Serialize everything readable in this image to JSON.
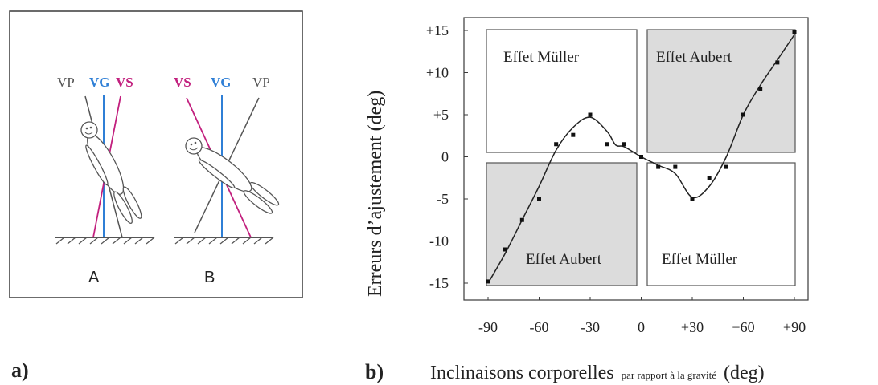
{
  "panel_a": {
    "label": "a)",
    "figure_A": {
      "caption": "A",
      "vp": "VP",
      "vg": "VG",
      "vs": "VS"
    },
    "figure_B": {
      "caption": "B",
      "vs": "VS",
      "vg": "VG",
      "vp": "VP"
    },
    "colors": {
      "vg": "#2f7fd6",
      "vs": "#c2207e",
      "vp": "#555555"
    }
  },
  "panel_b": {
    "label": "b)",
    "xlabel_main": "Inclinaisons corporelles",
    "xlabel_small": "par rapport à la gravité",
    "xlabel_unit": "(deg)",
    "ylabel": "Erreurs d’ajustement (deg)",
    "x_ticks": [
      "-90",
      "-60",
      "-30",
      "0",
      "+30",
      "+60",
      "+90"
    ],
    "y_ticks": [
      "+15",
      "+10",
      "+5",
      "0",
      "-5",
      "-10",
      "-15"
    ],
    "quadrants": {
      "top_left": "Effet Müller",
      "top_right": "Effet Aubert",
      "bottom_left": "Effet Aubert",
      "bottom_right": "Effet Müller"
    },
    "shade_color": "#dcdcdc"
  },
  "chart_data": {
    "type": "scatter",
    "xlim": [
      -90,
      90
    ],
    "ylim": [
      -15,
      15
    ],
    "grid": false,
    "points": [
      {
        "x": -90,
        "y": -14.8
      },
      {
        "x": -80,
        "y": -11
      },
      {
        "x": -70,
        "y": -7.5
      },
      {
        "x": -60,
        "y": -5
      },
      {
        "x": -50,
        "y": 1.5
      },
      {
        "x": -40,
        "y": 2.6
      },
      {
        "x": -30,
        "y": 5
      },
      {
        "x": -20,
        "y": 1.5
      },
      {
        "x": -10,
        "y": 1.5
      },
      {
        "x": 0,
        "y": 0
      },
      {
        "x": 10,
        "y": -1.2
      },
      {
        "x": 20,
        "y": -1.2
      },
      {
        "x": 30,
        "y": -5
      },
      {
        "x": 40,
        "y": -2.5
      },
      {
        "x": 50,
        "y": -1.2
      },
      {
        "x": 60,
        "y": 5
      },
      {
        "x": 70,
        "y": 8
      },
      {
        "x": 80,
        "y": 11.2
      },
      {
        "x": 90,
        "y": 14.8
      }
    ],
    "curve": [
      {
        "x": -90,
        "y": -15
      },
      {
        "x": -80,
        "y": -11.5
      },
      {
        "x": -70,
        "y": -7.5
      },
      {
        "x": -60,
        "y": -3.5
      },
      {
        "x": -50,
        "y": 0.8
      },
      {
        "x": -40,
        "y": 3.5
      },
      {
        "x": -30,
        "y": 4.7
      },
      {
        "x": -20,
        "y": 3
      },
      {
        "x": -15,
        "y": 1.4
      },
      {
        "x": -10,
        "y": 1.2
      },
      {
        "x": 0,
        "y": 0
      },
      {
        "x": 10,
        "y": -1
      },
      {
        "x": 20,
        "y": -2
      },
      {
        "x": 30,
        "y": -4.8
      },
      {
        "x": 40,
        "y": -3.5
      },
      {
        "x": 50,
        "y": 0
      },
      {
        "x": 60,
        "y": 5
      },
      {
        "x": 70,
        "y": 8.5
      },
      {
        "x": 80,
        "y": 11.5
      },
      {
        "x": 90,
        "y": 14.5
      }
    ]
  }
}
